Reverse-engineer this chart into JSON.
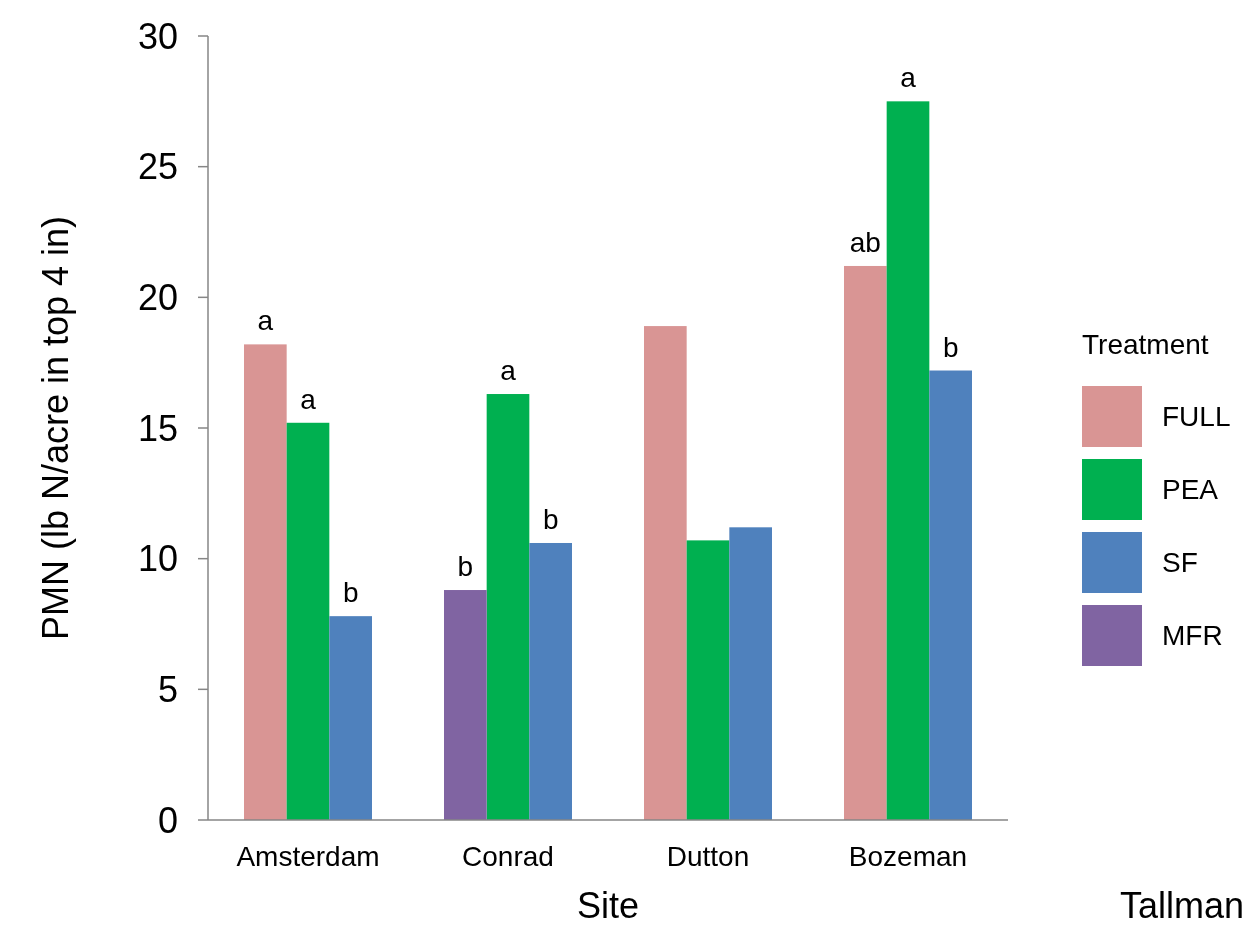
{
  "chart_data": {
    "type": "bar",
    "xlabel": "Site",
    "ylabel": "PMN (lb N/acre in top 4 in)",
    "legend_title": "Treatment",
    "legend": "right",
    "grid": false,
    "categories": [
      "Amsterdam",
      "Conrad",
      "Dutton",
      "Bozeman"
    ],
    "series": [
      {
        "name": "FULL",
        "color": "#d99594",
        "values": [
          18.2,
          null,
          18.9,
          21.2
        ],
        "value_labels": [
          "a",
          null,
          null,
          "ab"
        ]
      },
      {
        "name": "PEA",
        "color": "#00b050",
        "values": [
          15.2,
          16.3,
          10.7,
          27.5
        ],
        "value_labels": [
          "a",
          "a",
          null,
          "a"
        ]
      },
      {
        "name": "SF",
        "color": "#4f81bd",
        "values": [
          7.8,
          10.6,
          11.2,
          17.2
        ],
        "value_labels": [
          "b",
          "b",
          null,
          "b"
        ]
      },
      {
        "name": "MFR",
        "color": "#8064a2",
        "values": [
          null,
          8.8,
          null,
          null
        ],
        "value_labels": [
          null,
          "b",
          null,
          null
        ]
      }
    ],
    "ylim": [
      0,
      30
    ],
    "yticks": [
      0,
      5,
      10,
      15,
      20,
      25,
      30
    ],
    "annotations": [
      "Tallman"
    ]
  }
}
